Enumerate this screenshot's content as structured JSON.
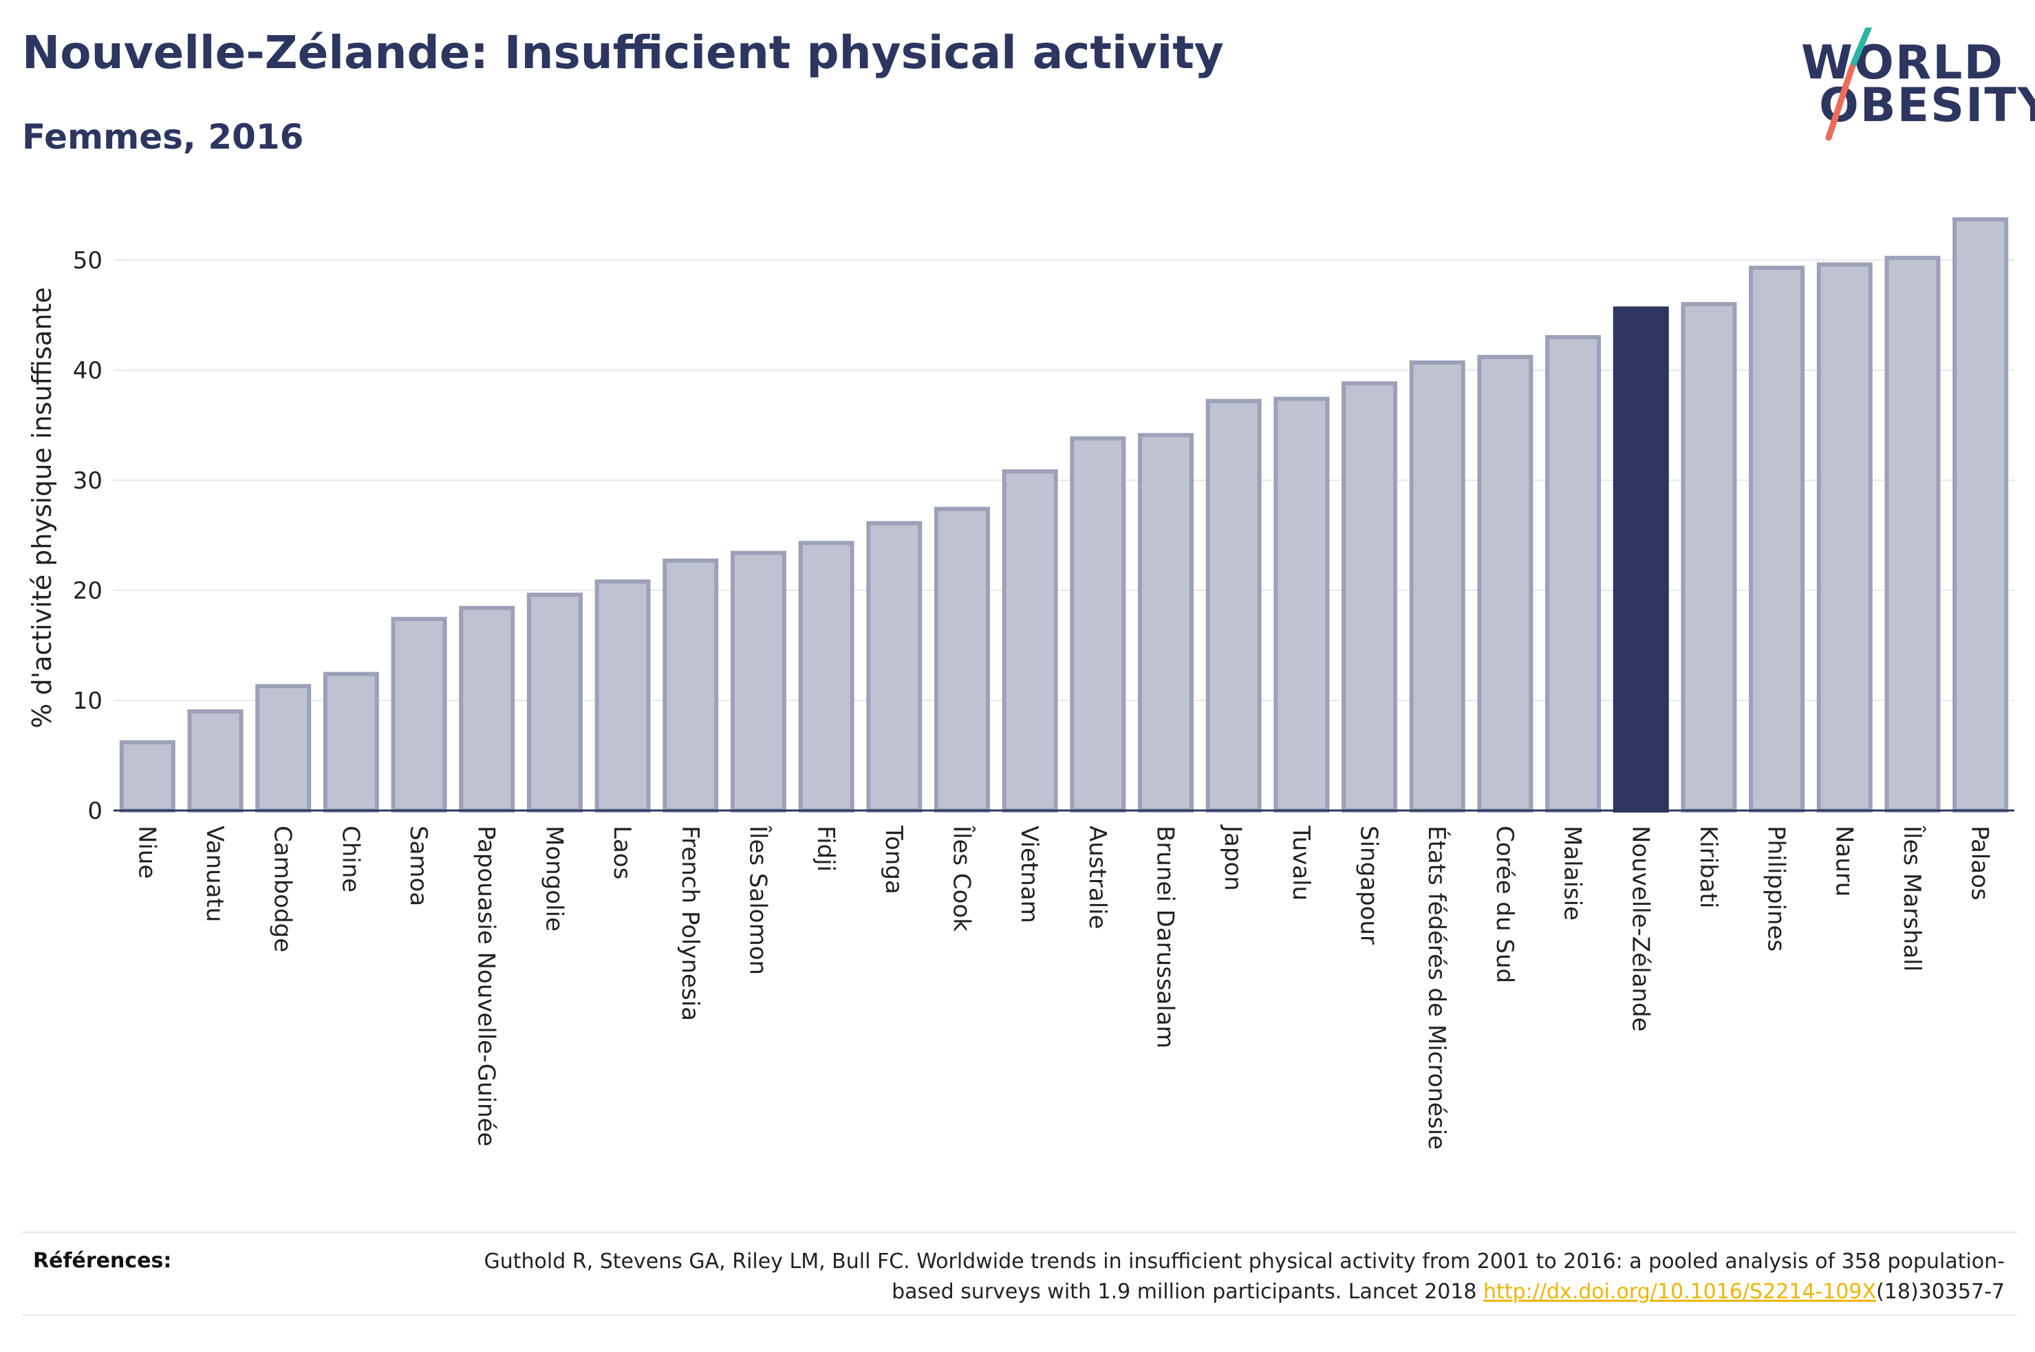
{
  "header": {
    "title": "Nouvelle-Zélande: Insufficient physical activity",
    "subtitle": "Femmes, 2016"
  },
  "logo": {
    "line1": "WORLD",
    "line2": "OBESITY",
    "colors": {
      "text": "#2c3660",
      "slash_top": "#2bb5a6",
      "slash_bottom": "#ee6b5a"
    }
  },
  "chart_data": {
    "type": "bar",
    "title": "Nouvelle-Zélande: Insufficient physical activity",
    "subtitle": "Femmes, 2016",
    "ylabel": "% d'activité physique insuffisante",
    "xlabel": "",
    "ylim": [
      0,
      55
    ],
    "yticks": [
      0,
      10,
      20,
      30,
      40,
      50
    ],
    "grid": true,
    "highlight": "Nouvelle-Zélande",
    "colors": {
      "bar_fill": "#bfc2d0",
      "bar_edge": "#9ca1b8",
      "highlight": "#2c3660",
      "axis": "#2c3660",
      "grid": "#e7e8ee"
    },
    "categories": [
      "Niue",
      "Vanuatu",
      "Cambodge",
      "Chine",
      "Samoa",
      "Papouasie Nouvelle-Guinée",
      "Mongolie",
      "Laos",
      "French Polynesia",
      "Îles Salomon",
      "Fidji",
      "Tonga",
      "Îles Cook",
      "Vietnam",
      "Australie",
      "Brunei Darussalam",
      "Japon",
      "Tuvalu",
      "Singapour",
      "États fédérés de Micronésie",
      "Corée du Sud",
      "Malaisie",
      "Nouvelle-Zélande",
      "Kiribati",
      "Philippines",
      "Nauru",
      "Îles Marshall",
      "Palaos"
    ],
    "values": [
      6.2,
      9.0,
      11.3,
      12.4,
      17.4,
      18.4,
      19.6,
      20.8,
      22.7,
      23.4,
      24.3,
      26.1,
      27.4,
      30.8,
      33.8,
      34.1,
      37.2,
      37.4,
      38.8,
      40.7,
      41.2,
      43.0,
      45.6,
      46.0,
      49.3,
      49.6,
      50.2,
      53.7
    ]
  },
  "references": {
    "label": "Références:",
    "text_before_link": "Guthold R, Stevens GA, Riley LM, Bull FC. Worldwide trends in insufficient physical activity from 2001 to 2016: a pooled analysis of 358 population-based surveys with 1.9 million participants. Lancet 2018 ",
    "link_text": "http://dx.doi.org/10.1016/S2214-109X",
    "text_after_link": "(18)30357-7"
  }
}
